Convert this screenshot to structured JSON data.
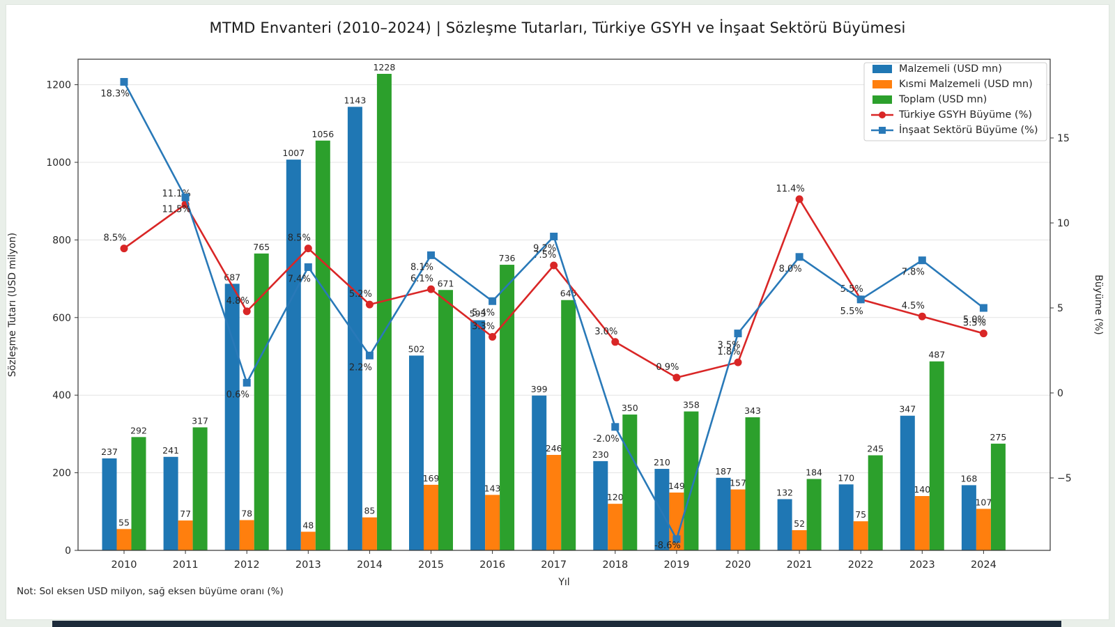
{
  "note": "Not: Sol eksen USD milyon, sağ eksen büyüme oranı (%)",
  "chart_data": {
    "type": "bar",
    "subtype": "grouped-bars-with-lines-combo",
    "title": "MTMD Envanteri (2010–2024) | Sözleşme Tutarları, Türkiye GSYH ve İnşaat Sektörü Büyümesi",
    "xlabel": "Yıl",
    "ylabel_left": "Sözleşme Tutarı (USD milyon)",
    "ylabel_right": "Büyüme (%)",
    "categories": [
      "2010",
      "2011",
      "2012",
      "2013",
      "2014",
      "2015",
      "2016",
      "2017",
      "2018",
      "2019",
      "2020",
      "2021",
      "2022",
      "2023",
      "2024"
    ],
    "series": [
      {
        "name": "Malzemeli (USD mn)",
        "kind": "bar",
        "axis": "left",
        "color": "#1f77b4",
        "values": [
          237,
          241,
          687,
          1007,
          1143,
          502,
          593,
          399,
          230,
          210,
          187,
          132,
          170,
          347,
          168
        ]
      },
      {
        "name": "Kısmi Malzemeli (USD mn)",
        "kind": "bar",
        "axis": "left",
        "color": "#ff7f0e",
        "values": [
          55,
          77,
          78,
          48,
          85,
          169,
          143,
          246,
          120,
          149,
          157,
          52,
          75,
          140,
          107
        ]
      },
      {
        "name": "Toplam (USD mn)",
        "kind": "bar",
        "axis": "left",
        "color": "#2ca02c",
        "values": [
          292,
          317,
          765,
          1056,
          1228,
          671,
          736,
          645,
          350,
          358,
          343,
          184,
          245,
          487,
          275
        ]
      },
      {
        "name": "Türkiye GSYH Büyüme (%)",
        "kind": "line",
        "marker": "circle",
        "axis": "right",
        "color": "#d92626",
        "values": [
          8.5,
          11.1,
          4.8,
          8.5,
          5.2,
          6.1,
          3.3,
          7.5,
          3.0,
          0.9,
          1.8,
          11.4,
          5.5,
          4.5,
          3.5
        ],
        "label_position": "above"
      },
      {
        "name": "İnşaat Sektörü Büyüme (%)",
        "kind": "line",
        "marker": "square",
        "axis": "right",
        "color": "#2979b8",
        "values": [
          18.3,
          11.5,
          0.6,
          7.4,
          2.2,
          8.1,
          5.4,
          9.2,
          -2.0,
          -8.6,
          3.5,
          8.0,
          5.5,
          7.8,
          5.0
        ],
        "label_position": "below"
      }
    ],
    "yticks_left": [
      0,
      200,
      400,
      600,
      800,
      1000,
      1200
    ],
    "yticks_right": [
      -5,
      0,
      5,
      10,
      15
    ],
    "ylim_left": [
      0,
      1265
    ],
    "ylim_right": [
      -9.3,
      19.6
    ],
    "grid": "horizontal-left-axis",
    "legend_position": "upper-right",
    "value_labels": "all-bars-and-line-points",
    "background": "#ffffff",
    "page_background": "#e9efe9"
  }
}
